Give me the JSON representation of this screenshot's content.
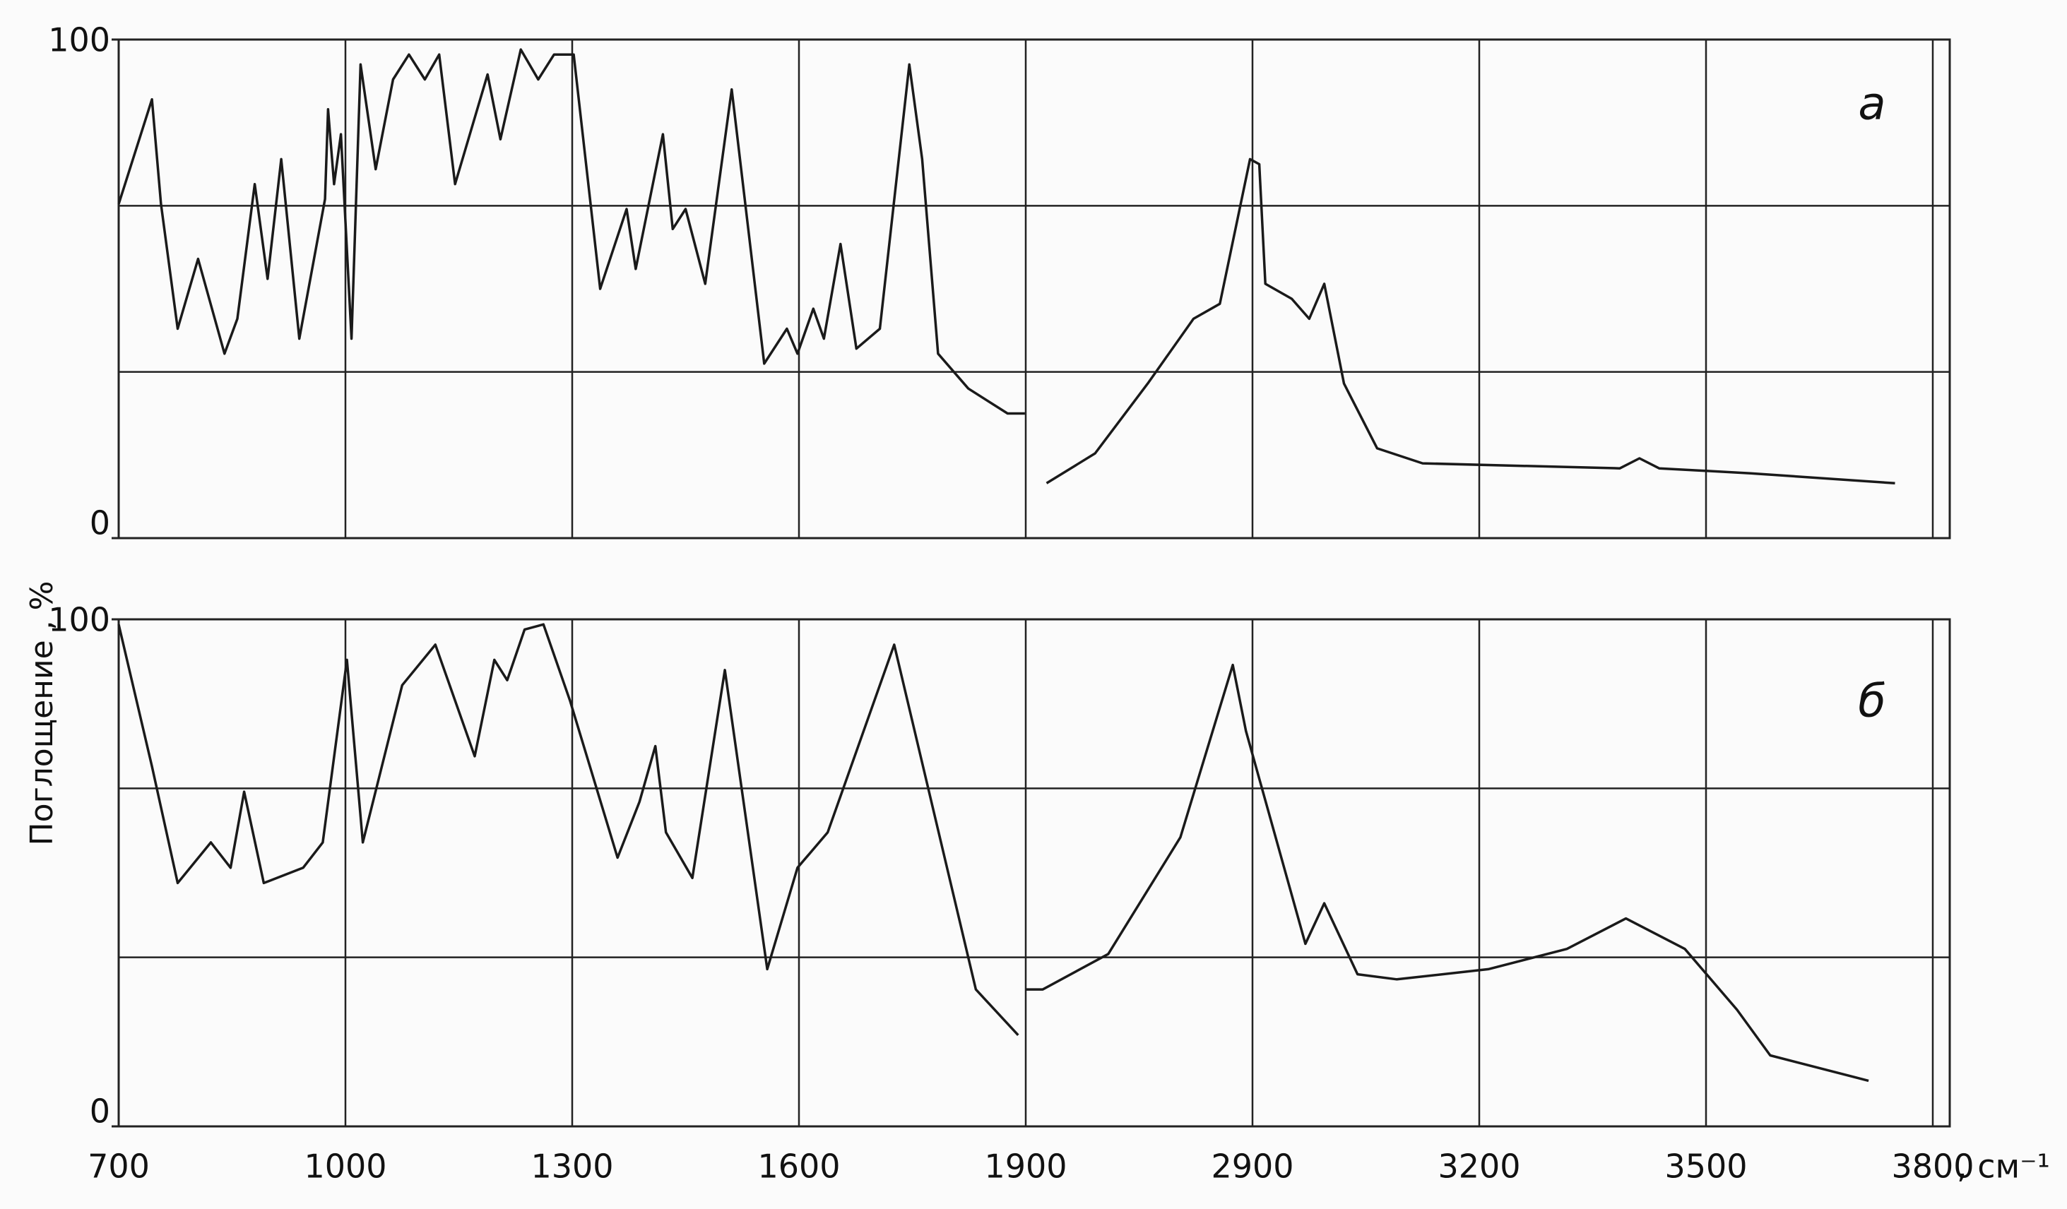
{
  "chart_data": {
    "type": "line",
    "y_label": "Поглощение , %",
    "x_label": ", см⁻¹",
    "xlim": [
      700,
      3800
    ],
    "xticks": [
      700,
      1000,
      1300,
      1600,
      1900,
      2900,
      3200,
      3500,
      3800
    ],
    "panels": [
      {
        "label": "а",
        "ylim": [
          0,
          100
        ],
        "yticks": [
          0,
          100
        ],
        "color": "#1a1a1a",
        "x": [
          700,
          744,
          756,
          778,
          805,
          840,
          857,
          880,
          897,
          915,
          939,
          973,
          977,
          985,
          994,
          1008,
          1020,
          1040,
          1063,
          1084,
          1105,
          1124,
          1145,
          1188,
          1205,
          1232,
          1255,
          1276,
          1302,
          1337,
          1372,
          1384,
          1420,
          1433,
          1450,
          1476,
          1511,
          1554,
          1584,
          1598,
          1619,
          1633,
          1655,
          1676,
          1707,
          1746,
          1763,
          1784,
          1824,
          1876,
          1899,
          null,
          1992,
          2206,
          2438,
          2640,
          2756,
          2889,
          2909,
          2917,
          2952,
          2975,
          2995,
          3021,
          3065,
          3125,
          3386,
          3412,
          3438,
          3559,
          3750
        ],
        "values": [
          67,
          88,
          67,
          42,
          56,
          37,
          44,
          71,
          52,
          76,
          40,
          68,
          86,
          71,
          81,
          40,
          95,
          74,
          92,
          97,
          92,
          97,
          71,
          93,
          80,
          98,
          92,
          97,
          97,
          50,
          66,
          54,
          81,
          62,
          66,
          51,
          90,
          35,
          42,
          37,
          46,
          40,
          59,
          38,
          42,
          95,
          76,
          37,
          30,
          25,
          25,
          null,
          11,
          17,
          31,
          44,
          47,
          76,
          75,
          51,
          48,
          44,
          51,
          31,
          18,
          15,
          14,
          16,
          14,
          13,
          11
        ]
      },
      {
        "label": "б",
        "ylim": [
          0,
          100
        ],
        "yticks": [
          0,
          100
        ],
        "color": "#1a1a1a",
        "x": [
          700,
          744,
          778,
          822,
          848,
          866,
          892,
          944,
          970,
          1002,
          1023,
          1075,
          1119,
          1171,
          1197,
          1214,
          1237,
          1262,
          1297,
          1360,
          1389,
          1410,
          1424,
          1459,
          1502,
          1558,
          1598,
          1638,
          1726,
          1834,
          1890,
          null,
          1900,
          1975,
          2264,
          2582,
          2813,
          2871,
          2970,
          2995,
          3039,
          3091,
          3212,
          3316,
          3394,
          3472,
          3541,
          3585,
          3715
        ],
        "values": [
          99,
          71,
          48,
          56,
          51,
          66,
          48,
          51,
          56,
          92,
          56,
          87,
          95,
          73,
          92,
          88,
          98,
          99,
          84,
          53,
          64,
          75,
          58,
          49,
          90,
          31,
          51,
          58,
          95,
          27,
          18,
          null,
          27,
          27,
          34,
          57,
          91,
          78,
          36,
          44,
          30,
          29,
          31,
          35,
          41,
          35,
          23,
          14,
          9
        ]
      }
    ]
  }
}
